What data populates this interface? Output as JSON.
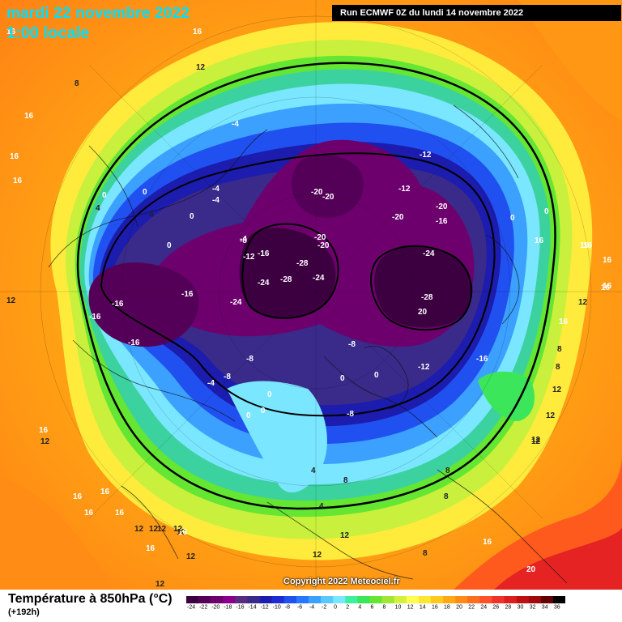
{
  "header": {
    "date": "mardi 22 novembre 2022",
    "time": "1:00 locale",
    "run": "Run ECMWF 0Z du lundi 14 novembre 2022"
  },
  "footer": {
    "copyright": "Copyright 2022 Meteociel.fr",
    "variable_title": "Température à 850hPa (°C)",
    "horizon": "(+192h)"
  },
  "legend": {
    "labels": [
      "-24",
      "-22",
      "-20",
      "-18",
      "-16",
      "-14",
      "-12",
      "-10",
      "-8",
      "-6",
      "-4",
      "-2",
      "0",
      "2",
      "4",
      "6",
      "8",
      "10",
      "12",
      "14",
      "16",
      "18",
      "20",
      "22",
      "24",
      "26",
      "28",
      "30",
      "32",
      "34",
      "36"
    ],
    "colors": [
      "#3c0040",
      "#550058",
      "#6e006e",
      "#8a008a",
      "#5a2c7e",
      "#3a2a8a",
      "#1c1cae",
      "#1c2cd2",
      "#2050f0",
      "#2878ff",
      "#3ca0ff",
      "#5ac8ff",
      "#7ae6ff",
      "#3cf0a0",
      "#3ce65a",
      "#64e632",
      "#a0e632",
      "#d2f03c",
      "#ffff50",
      "#ffe632",
      "#ffc81e",
      "#ffaa14",
      "#ff8c14",
      "#ff6e1e",
      "#ff5028",
      "#f03228",
      "#dc1e1e",
      "#be0f14",
      "#a00a0a",
      "#640000",
      "#000000"
    ]
  },
  "map_labels": [
    {
      "text": "16"
    },
    {
      "text": "16"
    },
    {
      "text": "12"
    },
    {
      "text": "8"
    },
    {
      "text": "16"
    },
    {
      "text": "16"
    },
    {
      "text": "12"
    },
    {
      "text": "4"
    },
    {
      "text": "-4"
    },
    {
      "text": "0"
    },
    {
      "text": "0"
    },
    {
      "text": "-4"
    },
    {
      "text": "-4"
    },
    {
      "text": "4"
    },
    {
      "text": "0"
    },
    {
      "text": "-4"
    },
    {
      "text": "0"
    },
    {
      "text": "-8"
    },
    {
      "text": "-12"
    },
    {
      "text": "-16"
    },
    {
      "text": "-20"
    },
    {
      "text": "-20"
    },
    {
      "text": "-12"
    },
    {
      "text": "-12"
    },
    {
      "text": "-20"
    },
    {
      "text": "-20"
    },
    {
      "text": "-16"
    },
    {
      "text": "-20"
    },
    {
      "text": "-20"
    },
    {
      "text": "-28"
    },
    {
      "text": "-24"
    },
    {
      "text": "-24"
    },
    {
      "text": "-28"
    },
    {
      "text": "-24"
    },
    {
      "text": "-24"
    },
    {
      "text": "-28"
    },
    {
      "text": "20"
    },
    {
      "text": "-16"
    },
    {
      "text": "-16"
    },
    {
      "text": "-16"
    },
    {
      "text": "-16"
    },
    {
      "text": "-8"
    },
    {
      "text": "-4"
    },
    {
      "text": "-8"
    },
    {
      "text": "-8"
    },
    {
      "text": "-12"
    },
    {
      "text": "-16"
    },
    {
      "text": "0"
    },
    {
      "text": "0"
    },
    {
      "text": "0"
    },
    {
      "text": "0"
    },
    {
      "text": "0"
    },
    {
      "text": "-8"
    },
    {
      "text": "4"
    },
    {
      "text": "8"
    },
    {
      "text": "4"
    },
    {
      "text": "8"
    },
    {
      "text": "8"
    },
    {
      "text": "12"
    },
    {
      "text": "12"
    },
    {
      "text": "12"
    },
    {
      "text": "8"
    },
    {
      "text": "12"
    },
    {
      "text": "16"
    },
    {
      "text": "16"
    },
    {
      "text": "16"
    },
    {
      "text": "12"
    },
    {
      "text": "12"
    },
    {
      "text": "16"
    },
    {
      "text": "12"
    },
    {
      "text": "20"
    },
    {
      "text": "16"
    },
    {
      "text": "12"
    },
    {
      "text": "16"
    },
    {
      "text": "16"
    },
    {
      "text": "16"
    },
    {
      "text": "12"
    },
    {
      "text": "16"
    },
    {
      "text": "8"
    },
    {
      "text": "8"
    },
    {
      "text": "12"
    },
    {
      "text": "0"
    },
    {
      "text": "0"
    },
    {
      "text": "16"
    },
    {
      "text": "16"
    },
    {
      "text": "16"
    },
    {
      "text": "12"
    },
    {
      "text": "16"
    },
    {
      "text": "12"
    },
    {
      "text": "12"
    },
    {
      "text": "12"
    },
    {
      "text": "16"
    },
    {
      "text": "16"
    },
    {
      "text": "16"
    },
    {
      "text": "12"
    }
  ]
}
